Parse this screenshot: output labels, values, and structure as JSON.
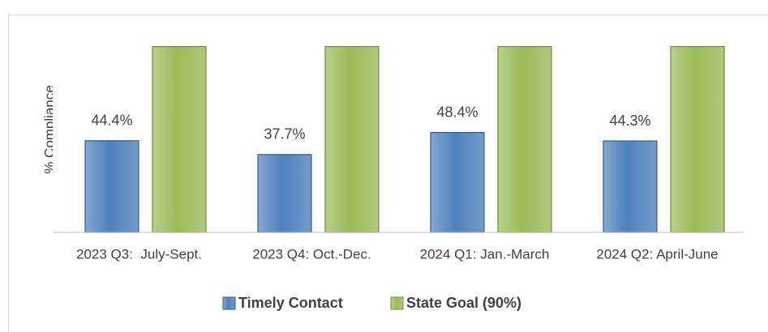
{
  "chart_data": {
    "type": "bar",
    "y_label": "% Compliance",
    "categories": [
      "2023 Q3:  July-Sept.",
      "2023 Q4: Oct.-Dec.",
      "2024 Q1: Jan.-March",
      "2024 Q2: April-June"
    ],
    "series": [
      {
        "name": "Timely Contact",
        "color": "#4f81bd",
        "border": "#385d8a",
        "values": [
          44.4,
          37.7,
          48.4,
          44.3
        ],
        "value_labels": [
          "44.4%",
          "37.7%",
          "48.4%",
          "44.3%"
        ]
      },
      {
        "name": "State Goal (90%)",
        "color": "#9bbb59",
        "border": "#71893f",
        "values": [
          90,
          90,
          90,
          90
        ]
      }
    ],
    "ylim": [
      0,
      100
    ],
    "legend": "bottom"
  }
}
